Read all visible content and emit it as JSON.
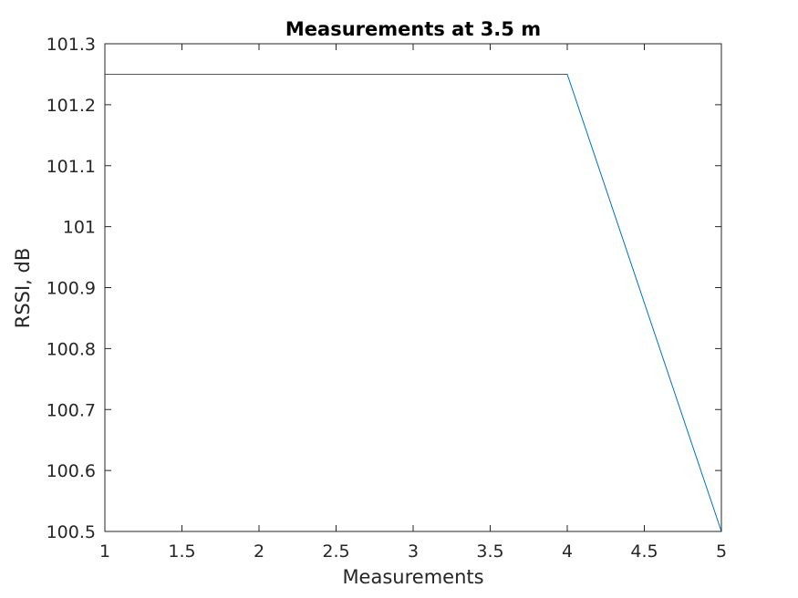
{
  "chart_data": {
    "type": "line",
    "title": "Measurements at 3.5 m",
    "xlabel": "Measurements",
    "ylabel": "RSSI, dB",
    "xlim": [
      1,
      5
    ],
    "ylim": [
      100.5,
      101.3
    ],
    "xticks": [
      1,
      1.5,
      2,
      2.5,
      3,
      3.5,
      4,
      4.5,
      5
    ],
    "xtick_labels": [
      "1",
      "1.5",
      "2",
      "2.5",
      "3",
      "3.5",
      "4",
      "4.5",
      "5"
    ],
    "yticks": [
      100.5,
      100.6,
      100.7,
      100.8,
      100.9,
      101,
      101.1,
      101.2,
      101.3
    ],
    "ytick_labels": [
      "100.5",
      "100.6",
      "100.7",
      "100.8",
      "100.9",
      "101",
      "101.1",
      "101.2",
      "101.3"
    ],
    "grid": false,
    "series": [
      {
        "x": [
          1,
          2,
          3,
          4,
          5
        ],
        "values": [
          101.25,
          101.25,
          101.25,
          101.25,
          100.5
        ],
        "color": "#0072BD"
      }
    ]
  },
  "colors": {
    "line": "#0072BD",
    "axes": "#262626",
    "title": "#000000"
  }
}
